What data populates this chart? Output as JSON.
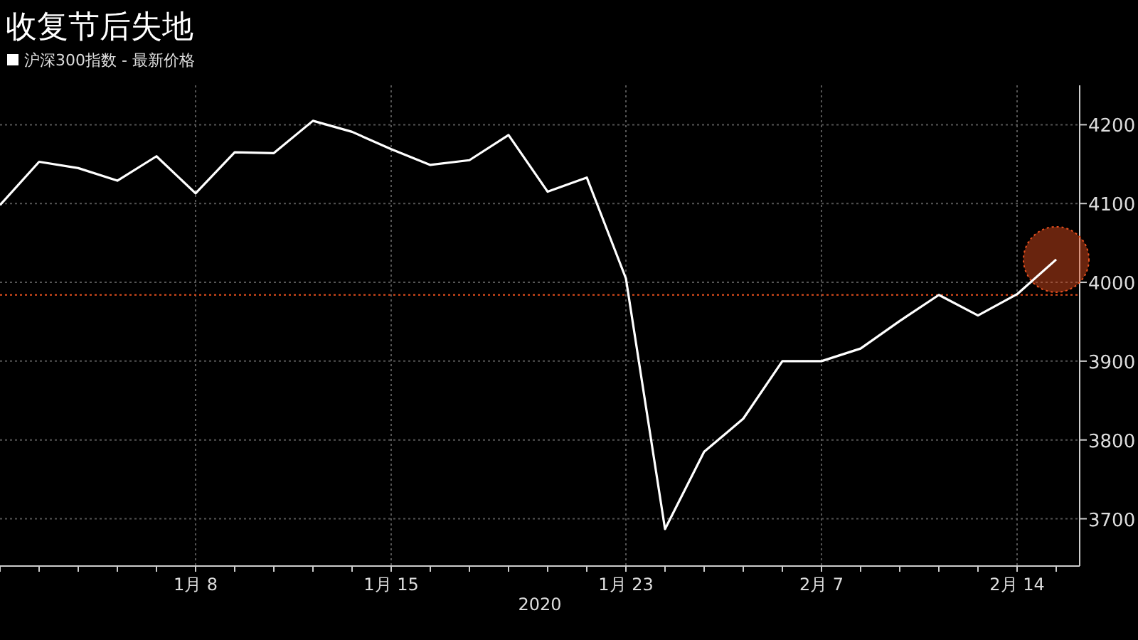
{
  "chart_data": {
    "type": "line",
    "title": "收复节后失地",
    "xlabel": "2020",
    "categories": [
      null,
      null,
      null,
      null,
      null,
      "1月 8",
      null,
      null,
      null,
      null,
      "1月 15",
      null,
      null,
      null,
      null,
      null,
      "1月 23",
      null,
      null,
      null,
      null,
      "2月 7",
      null,
      null,
      null,
      null,
      "2月 14",
      null
    ],
    "series": [
      {
        "name": "沪深300指数 - 最新价格",
        "color": "#ffffff",
        "values": [
          4098,
          4153,
          4145,
          4129,
          4160,
          4113,
          4165,
          4164,
          4205,
          4191,
          4169,
          4149,
          4155,
          4187,
          4115,
          4133,
          4005,
          3687,
          3785,
          3827,
          3900,
          3900,
          3916,
          3951,
          3984,
          3958,
          3985,
          4029
        ]
      }
    ],
    "ylim": [
      3640,
      4250
    ],
    "yticks": [
      3700,
      3800,
      3900,
      4000,
      4100,
      4200
    ],
    "ref_lines": [
      {
        "axis": "y",
        "value": 3984,
        "color": "#e8501e",
        "line_style": "dotted"
      }
    ],
    "grid": true,
    "legend": "top left",
    "marker": "none",
    "line_style": "solid"
  }
}
